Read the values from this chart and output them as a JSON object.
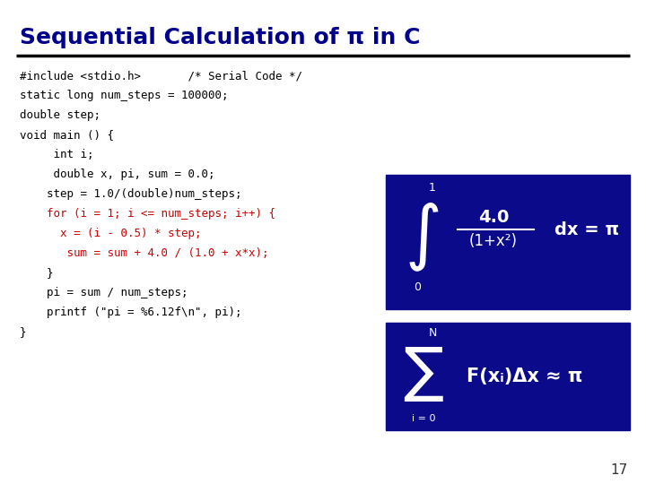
{
  "title": "Sequential Calculation of π in C",
  "title_color": "#00008b",
  "title_fontsize": 18,
  "bg_color": "#ffffff",
  "page_number": "17",
  "underline_color": "#000000",
  "box_color": "#0000aa",
  "code_black": "#000000",
  "code_red": "#cc0000",
  "code_fontsize": 9.0,
  "code_lines": [
    {
      "text": "#include <stdio.h>       /* Serial Code */",
      "color": "#000000"
    },
    {
      "text": "static long num_steps = 100000;",
      "color": "#000000"
    },
    {
      "text": "double step;",
      "color": "#000000"
    },
    {
      "text": "void main () {",
      "color": "#000000"
    },
    {
      "text": "     int i;",
      "color": "#000000"
    },
    {
      "text": "     double x, pi, sum = 0.0;",
      "color": "#000000"
    },
    {
      "text": "    step = 1.0/(double)num_steps;",
      "color": "#000000"
    },
    {
      "text": "    for (i = 1; i <= num_steps; i++) {",
      "color": "#cc0000"
    },
    {
      "text": "      x = (i - 0.5) * step;",
      "color": "#cc0000"
    },
    {
      "text": "       sum = sum + 4.0 / (1.0 + x*x);",
      "color": "#cc0000"
    },
    {
      "text": "    }",
      "color": "#000000"
    },
    {
      "text": "    pi = sum / num_steps;",
      "color": "#000000"
    },
    {
      "text": "    printf (\"pi = %6.12f\\n\", pi);",
      "color": "#000000"
    },
    {
      "text": "}",
      "color": "#000000"
    }
  ]
}
